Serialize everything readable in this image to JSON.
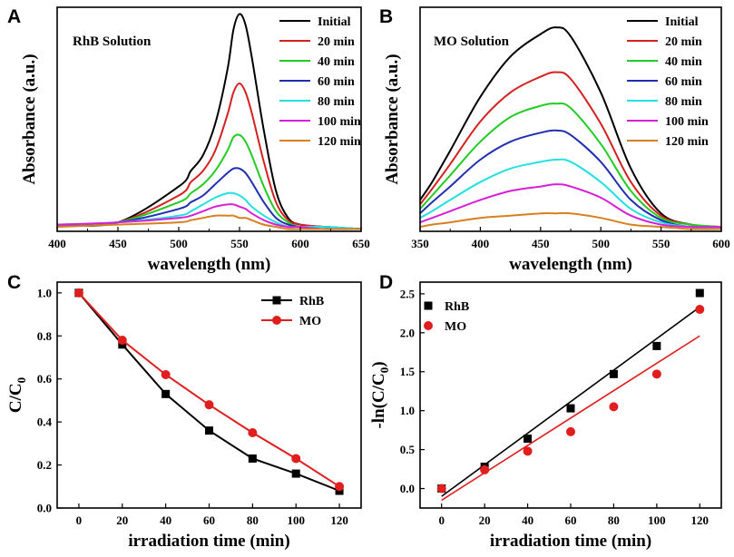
{
  "colors": {
    "initial": "#000000",
    "t20": "#d62020",
    "t40": "#22cc22",
    "t60": "#1f2fb0",
    "t80": "#22e0e0",
    "t100": "#d81fd8",
    "t120": "#d87f20",
    "rhb": "#000000",
    "mo": "#e01e1e"
  },
  "chart_data": [
    {
      "panel": "A",
      "type": "line",
      "title": "RhB Solution",
      "xlabel": "wavelength (nm)",
      "ylabel": "Absorbance (a.u.)",
      "xlim": [
        400,
        650
      ],
      "xticks": [
        400,
        450,
        500,
        550,
        600,
        650
      ],
      "ylim": [
        0,
        1
      ],
      "yticks_shown": false,
      "legend_position": "top-right",
      "series": [
        {
          "name": "Initial",
          "color_key": "initial",
          "x": [
            400,
            450,
            500,
            510,
            520,
            530,
            540,
            545,
            550,
            555,
            560,
            570,
            580,
            590,
            600,
            620,
            650
          ],
          "y": [
            0.03,
            0.04,
            0.2,
            0.27,
            0.34,
            0.48,
            0.72,
            0.9,
            0.97,
            0.92,
            0.78,
            0.45,
            0.18,
            0.06,
            0.03,
            0.02,
            0.01
          ]
        },
        {
          "name": "20 min",
          "color_key": "t20",
          "x": [
            400,
            450,
            500,
            510,
            520,
            530,
            540,
            545,
            550,
            555,
            560,
            570,
            580,
            590,
            600,
            620,
            650
          ],
          "y": [
            0.03,
            0.04,
            0.16,
            0.22,
            0.27,
            0.36,
            0.52,
            0.62,
            0.66,
            0.62,
            0.53,
            0.31,
            0.13,
            0.05,
            0.03,
            0.02,
            0.01
          ]
        },
        {
          "name": "40 min",
          "color_key": "t40",
          "x": [
            400,
            450,
            500,
            510,
            520,
            530,
            540,
            545,
            550,
            555,
            560,
            570,
            580,
            590,
            600,
            620,
            650
          ],
          "y": [
            0.03,
            0.04,
            0.13,
            0.17,
            0.21,
            0.27,
            0.36,
            0.42,
            0.43,
            0.4,
            0.34,
            0.2,
            0.09,
            0.04,
            0.02,
            0.02,
            0.01
          ]
        },
        {
          "name": "60 min",
          "color_key": "t60",
          "x": [
            400,
            450,
            500,
            510,
            520,
            530,
            540,
            545,
            550,
            555,
            560,
            570,
            580,
            590,
            600,
            620,
            650
          ],
          "y": [
            0.03,
            0.04,
            0.1,
            0.13,
            0.16,
            0.21,
            0.26,
            0.28,
            0.28,
            0.26,
            0.22,
            0.13,
            0.06,
            0.03,
            0.02,
            0.02,
            0.01
          ]
        },
        {
          "name": "80 min",
          "color_key": "t80",
          "x": [
            400,
            450,
            500,
            510,
            520,
            530,
            540,
            545,
            550,
            555,
            560,
            570,
            580,
            590,
            600,
            620,
            650
          ],
          "y": [
            0.03,
            0.04,
            0.07,
            0.09,
            0.12,
            0.15,
            0.17,
            0.17,
            0.16,
            0.14,
            0.11,
            0.07,
            0.04,
            0.02,
            0.02,
            0.02,
            0.01
          ]
        },
        {
          "name": "100 min",
          "color_key": "t100",
          "x": [
            400,
            450,
            500,
            510,
            520,
            530,
            540,
            545,
            550,
            555,
            560,
            570,
            580,
            590,
            600,
            620,
            650
          ],
          "y": [
            0.03,
            0.04,
            0.06,
            0.07,
            0.09,
            0.11,
            0.12,
            0.12,
            0.11,
            0.1,
            0.08,
            0.05,
            0.03,
            0.02,
            0.02,
            0.01,
            0.01
          ]
        },
        {
          "name": "120 min",
          "color_key": "t120",
          "x": [
            400,
            450,
            500,
            510,
            520,
            530,
            540,
            545,
            550,
            555,
            560,
            570,
            580,
            590,
            600,
            620,
            650
          ],
          "y": [
            0.02,
            0.03,
            0.04,
            0.05,
            0.06,
            0.07,
            0.07,
            0.07,
            0.06,
            0.06,
            0.05,
            0.03,
            0.02,
            0.01,
            0.01,
            0.01,
            0.01
          ]
        }
      ]
    },
    {
      "panel": "B",
      "type": "line",
      "title": "MO Solution",
      "xlabel": "wavelength (nm)",
      "ylabel": "Absorbance (a.u.)",
      "xlim": [
        350,
        600
      ],
      "xticks": [
        350,
        400,
        450,
        500,
        550,
        600
      ],
      "ylim": [
        0,
        1
      ],
      "yticks_shown": false,
      "legend_position": "top-right",
      "series": [
        {
          "name": "Initial",
          "color_key": "initial",
          "x": [
            350,
            360,
            375,
            400,
            425,
            450,
            463,
            475,
            500,
            525,
            550,
            575,
            600
          ],
          "y": [
            0.14,
            0.22,
            0.36,
            0.6,
            0.78,
            0.88,
            0.91,
            0.87,
            0.62,
            0.28,
            0.08,
            0.03,
            0.02
          ]
        },
        {
          "name": "20 min",
          "color_key": "t20",
          "x": [
            350,
            360,
            375,
            400,
            425,
            450,
            463,
            475,
            500,
            525,
            550,
            575,
            600
          ],
          "y": [
            0.12,
            0.19,
            0.3,
            0.49,
            0.62,
            0.69,
            0.71,
            0.68,
            0.48,
            0.22,
            0.07,
            0.03,
            0.02
          ]
        },
        {
          "name": "40 min",
          "color_key": "t40",
          "x": [
            350,
            360,
            375,
            400,
            425,
            450,
            463,
            475,
            500,
            525,
            550,
            575,
            600
          ],
          "y": [
            0.1,
            0.16,
            0.25,
            0.4,
            0.51,
            0.56,
            0.57,
            0.55,
            0.39,
            0.18,
            0.06,
            0.03,
            0.02
          ]
        },
        {
          "name": "60 min",
          "color_key": "t60",
          "x": [
            350,
            360,
            375,
            400,
            425,
            450,
            463,
            475,
            500,
            525,
            550,
            575,
            600
          ],
          "y": [
            0.08,
            0.13,
            0.2,
            0.32,
            0.4,
            0.44,
            0.45,
            0.43,
            0.31,
            0.14,
            0.05,
            0.02,
            0.02
          ]
        },
        {
          "name": "80 min",
          "color_key": "t80",
          "x": [
            350,
            360,
            375,
            400,
            425,
            450,
            463,
            475,
            500,
            525,
            550,
            575,
            600
          ],
          "y": [
            0.06,
            0.09,
            0.14,
            0.22,
            0.28,
            0.31,
            0.32,
            0.31,
            0.22,
            0.1,
            0.04,
            0.02,
            0.02
          ]
        },
        {
          "name": "100 min",
          "color_key": "t100",
          "x": [
            350,
            360,
            375,
            400,
            425,
            450,
            463,
            475,
            500,
            525,
            550,
            575,
            600
          ],
          "y": [
            0.04,
            0.06,
            0.09,
            0.14,
            0.18,
            0.2,
            0.21,
            0.2,
            0.15,
            0.07,
            0.03,
            0.02,
            0.02
          ]
        },
        {
          "name": "120 min",
          "color_key": "t120",
          "x": [
            350,
            360,
            375,
            400,
            425,
            450,
            463,
            475,
            500,
            525,
            550,
            575,
            600
          ],
          "y": [
            0.02,
            0.03,
            0.04,
            0.06,
            0.07,
            0.08,
            0.08,
            0.08,
            0.06,
            0.03,
            0.02,
            0.01,
            0.01
          ]
        }
      ]
    },
    {
      "panel": "C",
      "type": "line",
      "xlabel": "irradiation time (min)",
      "ylabel_main": "C/C",
      "ylabel_sub": "0",
      "xlim": [
        -10,
        130
      ],
      "xticks": [
        0,
        20,
        40,
        60,
        80,
        100,
        120
      ],
      "ylim": [
        0,
        1.05
      ],
      "yticks": [
        0.0,
        0.2,
        0.4,
        0.6,
        0.8,
        1.0
      ],
      "ytick_labels": [
        "0.0",
        "0.2",
        "0.4",
        "0.6",
        "0.8",
        "1.0"
      ],
      "legend_position": "top-right",
      "series": [
        {
          "name": "RhB",
          "color_key": "rhb",
          "marker": "square",
          "x": [
            0,
            20,
            40,
            60,
            80,
            100,
            120
          ],
          "y": [
            1.0,
            0.76,
            0.53,
            0.36,
            0.23,
            0.16,
            0.08
          ]
        },
        {
          "name": "MO",
          "color_key": "mo",
          "marker": "circle",
          "x": [
            0,
            20,
            40,
            60,
            80,
            100,
            120
          ],
          "y": [
            1.0,
            0.78,
            0.62,
            0.48,
            0.35,
            0.23,
            0.1
          ]
        }
      ]
    },
    {
      "panel": "D",
      "type": "scatter",
      "xlabel": "irradiation time (min)",
      "ylabel_main": "-ln(C/C",
      "ylabel_sub": "0",
      "ylabel_close": ")",
      "xlim": [
        -10,
        130
      ],
      "xticks": [
        0,
        20,
        40,
        60,
        80,
        100,
        120
      ],
      "ylim": [
        -0.25,
        2.65
      ],
      "yticks": [
        0.0,
        0.5,
        1.0,
        1.5,
        2.0,
        2.5
      ],
      "ytick_labels": [
        "0.0",
        "0.5",
        "1.0",
        "1.5",
        "2.0",
        "2.5"
      ],
      "legend_position": "top-left",
      "series": [
        {
          "name": "RhB",
          "color_key": "rhb",
          "marker": "square",
          "x": [
            0,
            20,
            40,
            60,
            80,
            100,
            120
          ],
          "y": [
            0.0,
            0.28,
            0.64,
            1.03,
            1.47,
            1.83,
            2.51
          ],
          "fit": {
            "x": [
              0,
              120
            ],
            "y": [
              -0.1,
              2.33
            ]
          }
        },
        {
          "name": "MO",
          "color_key": "mo",
          "marker": "circle",
          "x": [
            0,
            20,
            40,
            60,
            80,
            100,
            120
          ],
          "y": [
            0.0,
            0.24,
            0.48,
            0.73,
            1.05,
            1.47,
            2.3
          ],
          "fit": {
            "x": [
              0,
              120
            ],
            "y": [
              -0.15,
              1.96
            ]
          }
        }
      ]
    }
  ]
}
